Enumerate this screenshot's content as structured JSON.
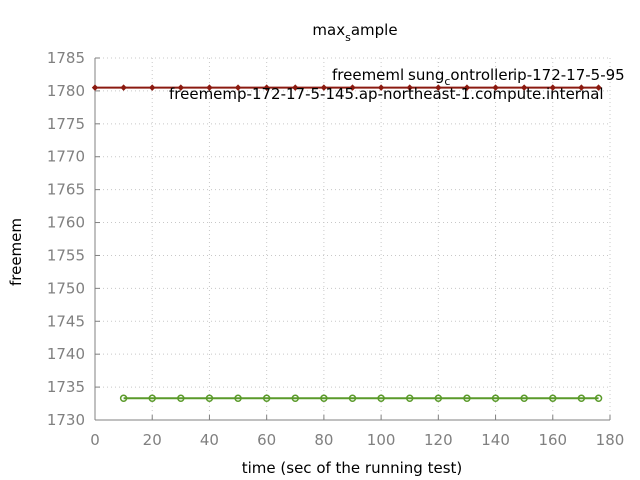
{
  "chart_data": {
    "type": "line",
    "title": "max_sample",
    "title_main": "max",
    "title_sub": "s",
    "title_rest": "ample",
    "xlabel": "time (sec of the running test)",
    "ylabel": "freemem",
    "xlim": [
      0,
      180
    ],
    "ylim": [
      1730,
      1785
    ],
    "x_ticks": [
      0,
      20,
      40,
      60,
      80,
      100,
      120,
      140,
      160,
      180
    ],
    "y_ticks": [
      1730,
      1735,
      1740,
      1745,
      1750,
      1755,
      1760,
      1765,
      1770,
      1775,
      1780,
      1785
    ],
    "grid": true,
    "series": [
      {
        "name": "freememp-172-17-5-145.ap-northeast-1.compute.internal",
        "color": "#8b1a10",
        "marker": "diamond",
        "x": [
          0,
          10,
          20,
          30,
          40,
          50,
          60,
          70,
          80,
          90,
          100,
          110,
          120,
          130,
          140,
          150,
          160,
          170,
          176
        ],
        "y": [
          1780.5,
          1780.5,
          1780.5,
          1780.5,
          1780.5,
          1780.5,
          1780.5,
          1780.5,
          1780.5,
          1780.5,
          1780.5,
          1780.5,
          1780.5,
          1780.5,
          1780.5,
          1780.5,
          1780.5,
          1780.5,
          1780.5
        ]
      },
      {
        "name": "freememlsung_controllerip-172-17-5-95",
        "color": "#5a9a2a",
        "marker": "circle",
        "x": [
          10,
          20,
          30,
          40,
          50,
          60,
          70,
          80,
          90,
          100,
          110,
          120,
          130,
          140,
          150,
          160,
          170,
          176
        ],
        "y": [
          1733.3,
          1733.3,
          1733.3,
          1733.3,
          1733.3,
          1733.3,
          1733.3,
          1733.3,
          1733.3,
          1733.3,
          1733.3,
          1733.3,
          1733.3,
          1733.3,
          1733.3,
          1733.3,
          1733.3,
          1733.3
        ]
      }
    ],
    "annotations": {
      "label_a_1": "freememl",
      "label_a_2": "sung",
      "label_a_sub": "c",
      "label_a_3": "ontroller",
      "label_a_4": "ip-172-17-5-95",
      "label_b": "freememp-172-17-5-145.ap-northeast-1.compute.internal"
    }
  }
}
